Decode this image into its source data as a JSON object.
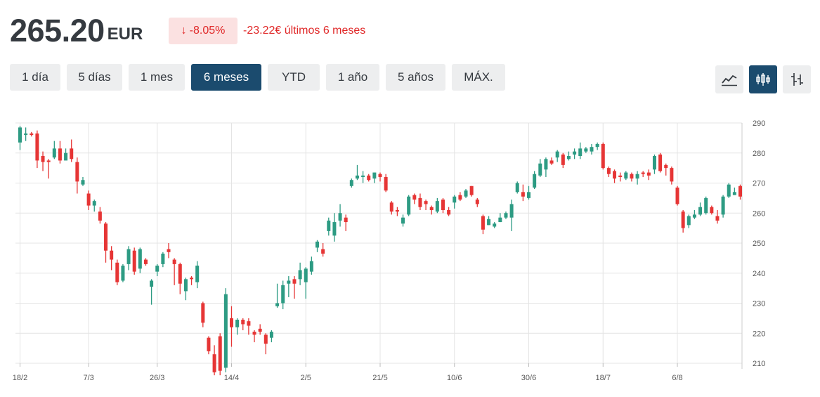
{
  "header": {
    "price": "265.20",
    "currency": "EUR",
    "change_arrow": "↓",
    "change_percent": "-8.05%",
    "change_text": "-23.22€ últimos 6 meses"
  },
  "ranges": [
    {
      "label": "1 día",
      "active": false
    },
    {
      "label": "5 días",
      "active": false
    },
    {
      "label": "1 mes",
      "active": false
    },
    {
      "label": "6 meses",
      "active": true
    },
    {
      "label": "YTD",
      "active": false
    },
    {
      "label": "1 año",
      "active": false
    },
    {
      "label": "5 años",
      "active": false
    },
    {
      "label": "MÁX.",
      "active": false
    }
  ],
  "tools": [
    {
      "icon": "line-chart-icon",
      "active": false
    },
    {
      "icon": "candlestick-chart-icon",
      "active": true
    },
    {
      "icon": "ohlc-chart-icon",
      "active": false
    }
  ],
  "colors": {
    "up": "#2d9b83",
    "down": "#e63535",
    "accent": "#1b4b6e"
  },
  "chart_data": {
    "type": "candlestick",
    "x_ticks": [
      "18/2",
      "7/3",
      "26/3",
      "14/4",
      "2/5",
      "21/5",
      "10/6",
      "30/6",
      "18/7",
      "6/8"
    ],
    "y_ticks": [
      290,
      280,
      270,
      260,
      250,
      240,
      230,
      220,
      210
    ],
    "ylim": [
      210,
      290
    ],
    "y_axis_position": "right",
    "grid": true,
    "candles": [
      [
        283.5,
        288.5,
        281,
        289
      ],
      [
        286,
        286.5,
        284,
        288.5
      ],
      [
        286.5,
        286,
        285.5,
        287
      ],
      [
        286.5,
        277.5,
        275,
        287.5
      ],
      [
        279,
        277,
        274,
        280.5
      ],
      [
        277.5,
        277,
        271.5,
        278
      ],
      [
        278.5,
        281.5,
        278,
        284
      ],
      [
        281.5,
        277.5,
        276.5,
        284
      ],
      [
        277.5,
        280,
        278,
        281.5
      ],
      [
        281.5,
        278,
        277,
        284.5
      ],
      [
        277,
        270.5,
        266.5,
        278.5
      ],
      [
        269.5,
        271,
        269,
        272
      ],
      [
        266.5,
        262.5,
        261,
        267.5
      ],
      [
        262.5,
        264,
        260.5,
        264.5
      ],
      [
        260.5,
        257.5,
        256.5,
        262
      ],
      [
        256.5,
        247.5,
        243.5,
        257
      ],
      [
        247.5,
        244.5,
        241,
        249
      ],
      [
        243.5,
        237,
        236,
        244.5
      ],
      [
        237.5,
        242.5,
        237,
        243
      ],
      [
        243,
        248,
        241,
        249
      ],
      [
        247.5,
        240.5,
        239.5,
        248.5
      ],
      [
        241.5,
        248,
        240,
        248.5
      ],
      [
        244.5,
        243,
        242.5,
        245
      ],
      [
        235.5,
        237.5,
        229.5,
        238
      ],
      [
        240.5,
        242.5,
        239,
        243
      ],
      [
        243,
        246.5,
        242,
        247
      ],
      [
        248,
        247,
        245,
        250
      ],
      [
        244.5,
        243,
        236,
        245
      ],
      [
        243,
        236.5,
        233,
        243.5
      ],
      [
        234,
        238,
        231,
        238.5
      ],
      [
        238.5,
        238,
        236,
        239
      ],
      [
        237,
        242.5,
        235,
        244
      ],
      [
        230,
        223.5,
        222,
        230.5
      ],
      [
        218.5,
        214,
        213,
        219
      ],
      [
        213,
        207,
        206,
        216
      ],
      [
        219,
        207.5,
        206,
        220
      ],
      [
        208.5,
        233,
        207,
        235
      ],
      [
        225,
        222,
        215.5,
        229
      ],
      [
        222,
        224.5,
        219.5,
        225
      ],
      [
        224.5,
        223,
        221,
        225
      ],
      [
        224,
        222.5,
        219.5,
        225
      ],
      [
        220.5,
        219.5,
        217,
        221
      ],
      [
        221.5,
        220.5,
        219.5,
        223
      ],
      [
        219.5,
        216.5,
        213,
        220
      ],
      [
        218.5,
        220.5,
        217,
        221
      ],
      [
        229,
        230,
        228.5,
        236.5
      ],
      [
        230,
        236,
        228,
        237.5
      ],
      [
        236.5,
        237.5,
        232,
        239
      ],
      [
        238,
        236.5,
        231.5,
        239
      ],
      [
        238,
        241,
        236,
        243.5
      ],
      [
        237,
        241.5,
        231.5,
        242
      ],
      [
        240.5,
        244,
        239.5,
        245.5
      ],
      [
        248.5,
        250.5,
        247,
        251
      ],
      [
        248,
        246.5,
        245.5,
        250
      ],
      [
        254,
        257.5,
        252.5,
        258.5
      ],
      [
        252.5,
        257,
        250.5,
        260
      ],
      [
        257.5,
        260,
        255.5,
        263
      ],
      [
        258.5,
        257,
        254,
        259.5
      ],
      [
        269,
        271,
        268.5,
        271.5
      ],
      [
        271.5,
        272.5,
        271,
        276
      ],
      [
        272,
        272.5,
        270,
        274
      ],
      [
        272.5,
        271,
        270.5,
        273
      ],
      [
        271.5,
        273.5,
        270,
        273.5
      ],
      [
        273,
        272,
        270.5,
        273.5
      ],
      [
        272,
        267.5,
        267,
        273
      ],
      [
        263.5,
        260.5,
        259.5,
        264
      ],
      [
        261,
        260.5,
        259,
        262
      ],
      [
        256.5,
        258.5,
        255.5,
        259.5
      ],
      [
        259.5,
        265.5,
        259,
        266
      ],
      [
        266,
        264.5,
        263,
        266.5
      ],
      [
        265,
        262,
        261,
        266.5
      ],
      [
        264,
        263,
        261,
        264.5
      ],
      [
        262,
        261,
        259.5,
        262.5
      ],
      [
        260.5,
        264,
        260,
        265
      ],
      [
        264.5,
        261,
        260,
        265
      ],
      [
        261,
        259.5,
        259,
        262
      ],
      [
        263.5,
        265.5,
        261.5,
        266
      ],
      [
        266,
        264.5,
        264,
        267
      ],
      [
        265.5,
        267.5,
        265,
        268
      ],
      [
        269,
        266,
        265.5,
        269
      ],
      [
        264.5,
        263,
        262,
        265
      ],
      [
        259,
        254.5,
        253,
        259.5
      ],
      [
        256,
        258,
        256,
        259
      ],
      [
        255.5,
        256.5,
        255,
        257
      ],
      [
        257,
        258.5,
        257,
        260
      ],
      [
        258.5,
        260,
        258,
        260.5
      ],
      [
        258.5,
        263,
        254,
        264.5
      ],
      [
        267,
        270,
        266.5,
        270.5
      ],
      [
        267,
        265.5,
        264,
        269.5
      ],
      [
        265,
        267,
        264.5,
        269
      ],
      [
        268.5,
        273,
        268,
        274
      ],
      [
        272.5,
        276.5,
        272,
        278
      ],
      [
        274.5,
        278,
        272,
        278.5
      ],
      [
        277.5,
        276.5,
        276,
        278.5
      ],
      [
        278.5,
        280.5,
        277,
        281
      ],
      [
        279.5,
        276,
        275,
        280
      ],
      [
        278,
        279,
        277.5,
        280.5
      ],
      [
        279.5,
        280.5,
        278,
        281.5
      ],
      [
        279,
        281.5,
        278,
        283.5
      ],
      [
        280.5,
        281.5,
        280,
        282
      ],
      [
        280.5,
        282,
        279.5,
        283
      ],
      [
        282,
        283,
        281,
        283.5
      ],
      [
        283,
        275,
        274.5,
        283.5
      ],
      [
        275,
        273,
        272,
        275.5
      ],
      [
        274,
        271.5,
        270,
        274.5
      ],
      [
        272.5,
        272,
        270.5,
        273.5
      ],
      [
        271.5,
        273.5,
        271,
        274
      ],
      [
        273,
        271.5,
        270.5,
        273.5
      ],
      [
        271.5,
        273,
        269.5,
        274
      ],
      [
        273.5,
        273,
        272,
        274
      ],
      [
        273.5,
        272.5,
        271,
        274.5
      ],
      [
        274.5,
        279,
        273,
        279.5
      ],
      [
        279.5,
        274,
        273.5,
        280
      ],
      [
        276,
        275,
        272.5,
        276.5
      ],
      [
        275,
        270.5,
        269.5,
        275.5
      ],
      [
        268.5,
        263,
        262.5,
        269
      ],
      [
        260.5,
        255,
        253.5,
        261
      ],
      [
        256,
        259,
        255,
        259.5
      ],
      [
        258.5,
        259.5,
        258,
        261
      ],
      [
        259.5,
        262,
        259,
        263.5
      ],
      [
        260,
        265,
        259.5,
        265.5
      ],
      [
        262,
        260,
        259.5,
        262.5
      ],
      [
        259,
        257.5,
        256.5,
        261
      ],
      [
        259.5,
        265.5,
        258.5,
        266
      ],
      [
        265.5,
        269.5,
        265,
        270
      ],
      [
        266,
        267,
        266,
        268.5
      ],
      [
        269,
        265.5,
        264.5,
        269.5
      ]
    ]
  }
}
